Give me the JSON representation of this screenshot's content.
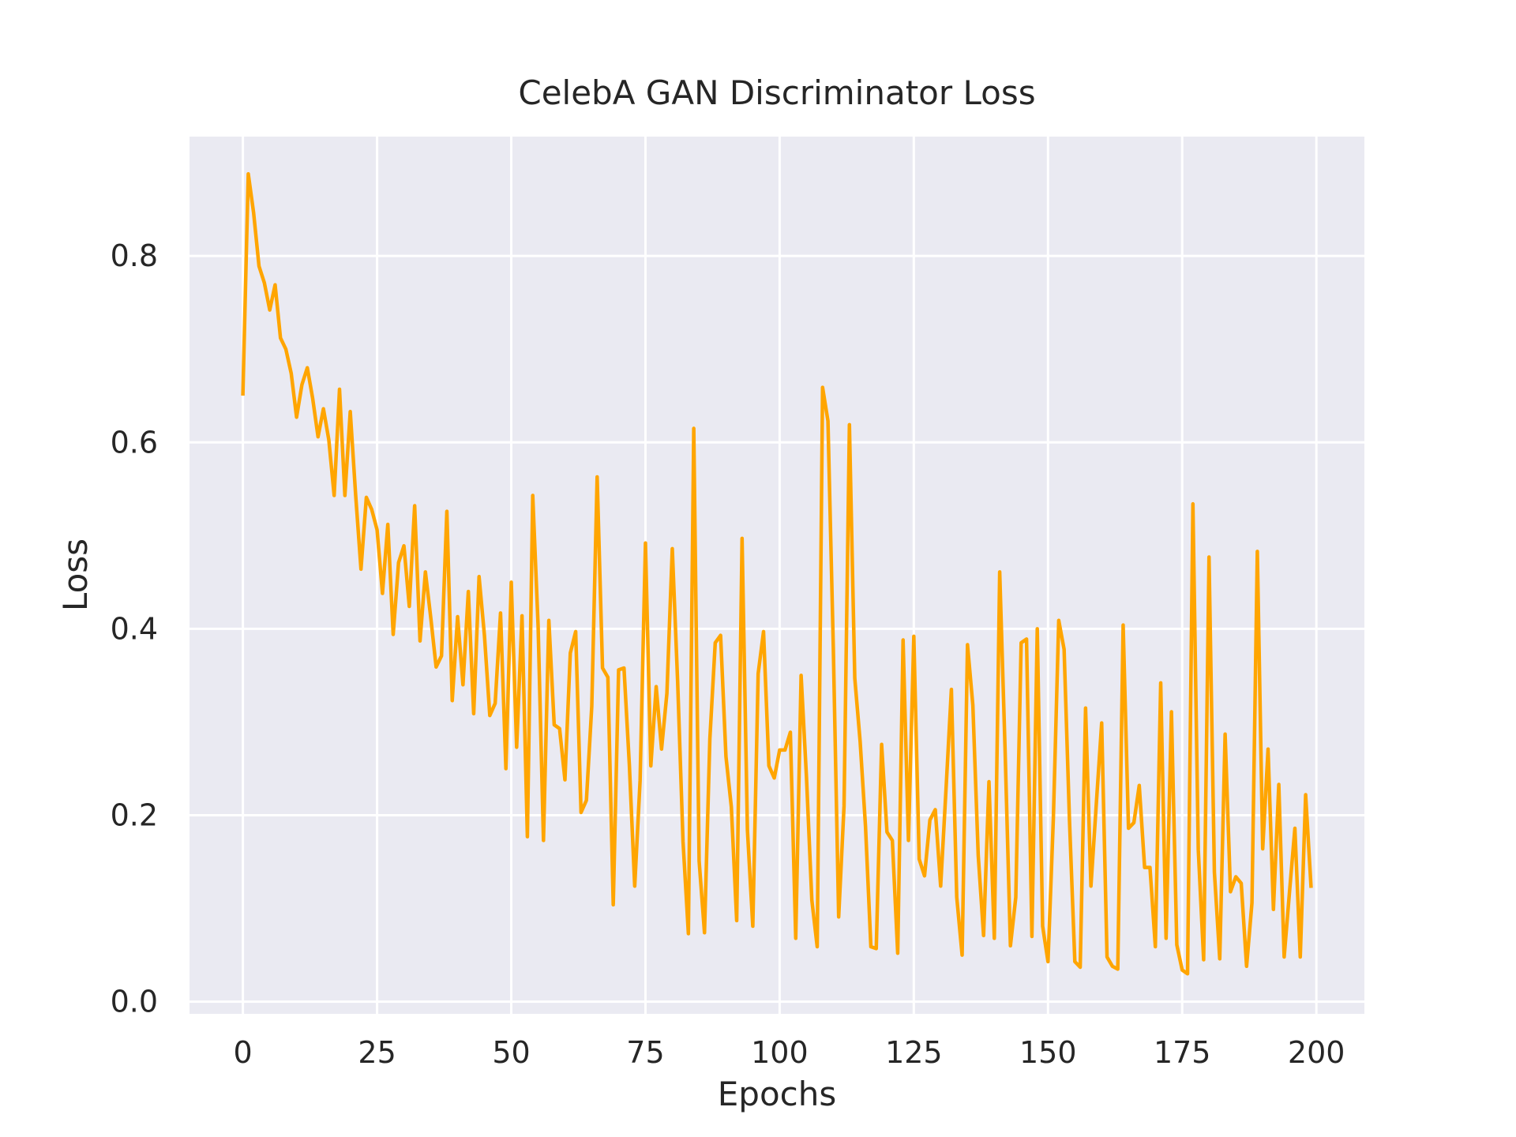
{
  "chart_data": {
    "type": "line",
    "title": "CelebA GAN Discriminator Loss",
    "xlabel": "Epochs",
    "ylabel": "Loss",
    "xlim": [
      -9.95,
      208.95
    ],
    "ylim": [
      -0.013,
      0.928
    ],
    "xticks": [
      0,
      25,
      50,
      75,
      100,
      125,
      150,
      175,
      200
    ],
    "xtick_labels": [
      "0",
      "25",
      "50",
      "75",
      "100",
      "125",
      "150",
      "175",
      "200"
    ],
    "yticks": [
      0.0,
      0.2,
      0.4,
      0.6,
      0.8
    ],
    "ytick_labels": [
      "0.0",
      "0.2",
      "0.4",
      "0.6",
      "0.8"
    ],
    "grid": true,
    "legend": "none",
    "colors": {
      "line": "#ffa500",
      "plot_bg": "#eaeaf2",
      "grid": "#ffffff",
      "text": "#262626"
    },
    "series": [
      {
        "x_start": 0,
        "x_step": 1,
        "values": [
          0.652,
          0.888,
          0.846,
          0.789,
          0.771,
          0.742,
          0.769,
          0.712,
          0.7,
          0.674,
          0.627,
          0.662,
          0.68,
          0.647,
          0.606,
          0.636,
          0.603,
          0.543,
          0.657,
          0.543,
          0.633,
          0.544,
          0.464,
          0.541,
          0.528,
          0.506,
          0.438,
          0.512,
          0.394,
          0.471,
          0.489,
          0.424,
          0.532,
          0.387,
          0.461,
          0.412,
          0.359,
          0.371,
          0.526,
          0.323,
          0.413,
          0.34,
          0.44,
          0.309,
          0.456,
          0.393,
          0.307,
          0.32,
          0.417,
          0.25,
          0.45,
          0.273,
          0.414,
          0.177,
          0.543,
          0.403,
          0.173,
          0.409,
          0.297,
          0.293,
          0.238,
          0.374,
          0.397,
          0.203,
          0.216,
          0.317,
          0.563,
          0.358,
          0.348,
          0.104,
          0.356,
          0.358,
          0.254,
          0.124,
          0.237,
          0.492,
          0.253,
          0.338,
          0.271,
          0.331,
          0.486,
          0.343,
          0.172,
          0.073,
          0.615,
          0.151,
          0.074,
          0.282,
          0.385,
          0.393,
          0.263,
          0.209,
          0.087,
          0.497,
          0.184,
          0.081,
          0.352,
          0.397,
          0.253,
          0.24,
          0.27,
          0.27,
          0.289,
          0.068,
          0.35,
          0.241,
          0.109,
          0.059,
          0.659,
          0.623,
          0.38,
          0.091,
          0.21,
          0.619,
          0.347,
          0.279,
          0.188,
          0.059,
          0.057,
          0.276,
          0.182,
          0.173,
          0.052,
          0.388,
          0.173,
          0.392,
          0.153,
          0.135,
          0.195,
          0.206,
          0.124,
          0.228,
          0.335,
          0.112,
          0.05,
          0.383,
          0.318,
          0.157,
          0.071,
          0.236,
          0.068,
          0.461,
          0.271,
          0.06,
          0.112,
          0.385,
          0.389,
          0.07,
          0.4,
          0.081,
          0.043,
          0.197,
          0.409,
          0.378,
          0.195,
          0.043,
          0.037,
          0.315,
          0.124,
          0.212,
          0.299,
          0.048,
          0.038,
          0.035,
          0.404,
          0.186,
          0.192,
          0.232,
          0.144,
          0.144,
          0.059,
          0.342,
          0.068,
          0.311,
          0.061,
          0.034,
          0.03,
          0.534,
          0.163,
          0.045,
          0.477,
          0.139,
          0.046,
          0.287,
          0.118,
          0.134,
          0.127,
          0.038,
          0.106,
          0.483,
          0.164,
          0.271,
          0.099,
          0.233,
          0.048,
          0.118,
          0.186,
          0.048,
          0.222,
          0.124
        ]
      }
    ]
  }
}
